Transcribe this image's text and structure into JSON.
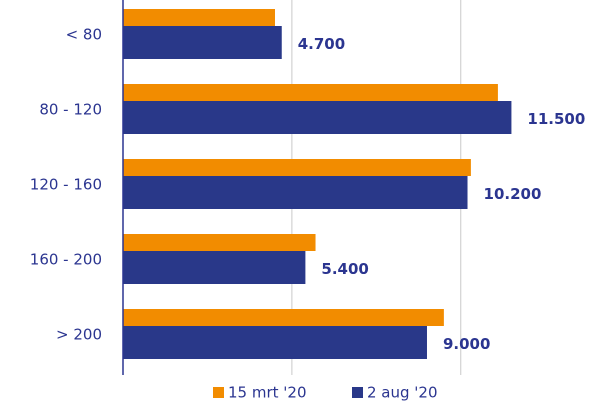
{
  "chart_data": {
    "type": "barh",
    "categories": [
      "< 80",
      "80 - 120",
      "120 - 160",
      "160 - 200",
      "> 200"
    ],
    "series": [
      {
        "name": "15 mrt '20",
        "color": "#f28c00",
        "values": [
          4500,
          11100,
          10300,
          5700,
          9500
        ]
      },
      {
        "name": "2 aug '20",
        "color": "#293889",
        "values": [
          4700,
          11500,
          10200,
          5400,
          9000
        ],
        "value_labels": [
          "4.700",
          "11.500",
          "10.200",
          "5.400",
          "9.000"
        ]
      }
    ],
    "xlim": [
      0,
      14300
    ],
    "xticks": [
      0,
      5000,
      10000
    ],
    "grid": true,
    "legend": "bottom"
  }
}
